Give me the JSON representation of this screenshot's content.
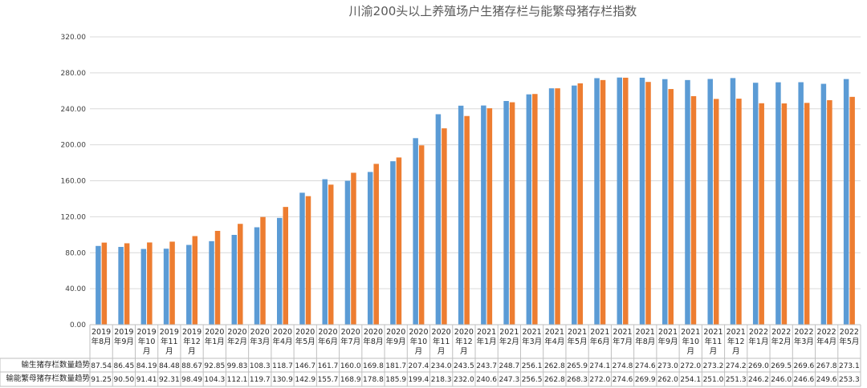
{
  "chart_data": {
    "type": "bar",
    "title": "川渝200头以上养殖场户生猪存栏与能繁母猪存栏指数",
    "ylim": [
      0,
      320
    ],
    "yticks": [
      "0.00",
      "40.00",
      "80.00",
      "120.00",
      "160.00",
      "200.00",
      "240.00",
      "280.00",
      "320.00"
    ],
    "grid": true,
    "legend": "table-below",
    "colors": {
      "series1": "#5b9bd5",
      "series2": "#ed7d31",
      "grid": "#d9d9d9",
      "table_border": "#bfbfbf"
    },
    "categories": [
      "2019年8月",
      "2019年9月",
      "2019年10月",
      "2019年11月",
      "2019年12月",
      "2020年1月",
      "2020年2月",
      "2020年3月",
      "2020年4月",
      "2020年5月",
      "2020年6月",
      "2020年7月",
      "2020年8月",
      "2020年9月",
      "2020年10月",
      "2020年11月",
      "2020年12月",
      "2021年1月",
      "2021年2月",
      "2021年3月",
      "2021年4月",
      "2021年5月",
      "2021年6月",
      "2021年7月",
      "2021年8月",
      "2021年9月",
      "2021年10月",
      "2021年11月",
      "2021年12月",
      "2022年1月",
      "2022年2月",
      "2022年3月",
      "2022年4月",
      "2022年5月"
    ],
    "category_lines": [
      [
        "2019",
        "年8月"
      ],
      [
        "2019",
        "年9月"
      ],
      [
        "2019",
        "年10",
        "月"
      ],
      [
        "2019",
        "年11",
        "月"
      ],
      [
        "2019",
        "年12",
        "月"
      ],
      [
        "2020",
        "年1月"
      ],
      [
        "2020",
        "年2月"
      ],
      [
        "2020",
        "年3月"
      ],
      [
        "2020",
        "年4月"
      ],
      [
        "2020",
        "年5月"
      ],
      [
        "2020",
        "年6月"
      ],
      [
        "2020",
        "年7月"
      ],
      [
        "2020",
        "年8月"
      ],
      [
        "2020",
        "年9月"
      ],
      [
        "2020",
        "年10",
        "月"
      ],
      [
        "2020",
        "年11",
        "月"
      ],
      [
        "2020",
        "年12",
        "月"
      ],
      [
        "2021",
        "年1月"
      ],
      [
        "2021",
        "年2月"
      ],
      [
        "2021",
        "年3月"
      ],
      [
        "2021",
        "年4月"
      ],
      [
        "2021",
        "年5月"
      ],
      [
        "2021",
        "年6月"
      ],
      [
        "2021",
        "年7月"
      ],
      [
        "2021",
        "年8月"
      ],
      [
        "2021",
        "年9月"
      ],
      [
        "2021",
        "年10",
        "月"
      ],
      [
        "2021",
        "年11",
        "月"
      ],
      [
        "2021",
        "年12",
        "月"
      ],
      [
        "2022",
        "年1月"
      ],
      [
        "2022",
        "年2月"
      ],
      [
        "2022",
        "年3月"
      ],
      [
        "2022",
        "年4月"
      ],
      [
        "2022",
        "年5月"
      ]
    ],
    "series": [
      {
        "name": "输生猪存栏数量趋势",
        "values": [
          87.54,
          86.45,
          84.19,
          84.48,
          88.67,
          92.85,
          99.83,
          108.3,
          118.7,
          146.7,
          161.7,
          160.0,
          169.8,
          181.7,
          207.4,
          234.0,
          243.5,
          243.7,
          248.7,
          256.1,
          262.8,
          265.9,
          274.1,
          274.8,
          274.6,
          273.0,
          272.0,
          273.2,
          274.2,
          269.0,
          269.5,
          269.6,
          267.8,
          273.1
        ],
        "labels": [
          "87.54",
          "86.45",
          "84.19",
          "84.48",
          "88.67",
          "92.85",
          "99.83",
          "108.3",
          "118.7",
          "146.7",
          "161.7",
          "160.0",
          "169.8",
          "181.7",
          "207.4",
          "234.0",
          "243.5",
          "243.7",
          "248.7",
          "256.1",
          "262.8",
          "265.9",
          "274.1",
          "274.8",
          "274.6",
          "273.0",
          "272.0",
          "273.2",
          "274.2",
          "269.0",
          "269.5",
          "269.6",
          "267.8",
          "273.1"
        ]
      },
      {
        "name": "输能繁母猪存栏数量趋势",
        "values": [
          91.25,
          90.5,
          91.41,
          92.31,
          98.49,
          104.3,
          112.1,
          119.7,
          130.9,
          142.9,
          155.7,
          168.9,
          178.8,
          185.9,
          199.4,
          218.3,
          232.0,
          240.6,
          247.3,
          256.5,
          262.8,
          268.3,
          272.0,
          274.6,
          269.9,
          262.0,
          254.1,
          251.0,
          251.3,
          246.2,
          246.0,
          246.6,
          249.6,
          253.3
        ],
        "labels": [
          "91.25",
          "90.50",
          "91.41",
          "92.31",
          "98.49",
          "104.3",
          "112.1",
          "119.7",
          "130.9",
          "142.9",
          "155.7",
          "168.9",
          "178.8",
          "185.9",
          "199.4",
          "218.3",
          "232.0",
          "240.6",
          "247.3",
          "256.5",
          "262.8",
          "268.3",
          "272.0",
          "274.6",
          "269.9",
          "262.0",
          "254.1",
          "251.0",
          "251.3",
          "246.2",
          "246.0",
          "246.6",
          "249.6",
          "253.3"
        ]
      }
    ]
  }
}
